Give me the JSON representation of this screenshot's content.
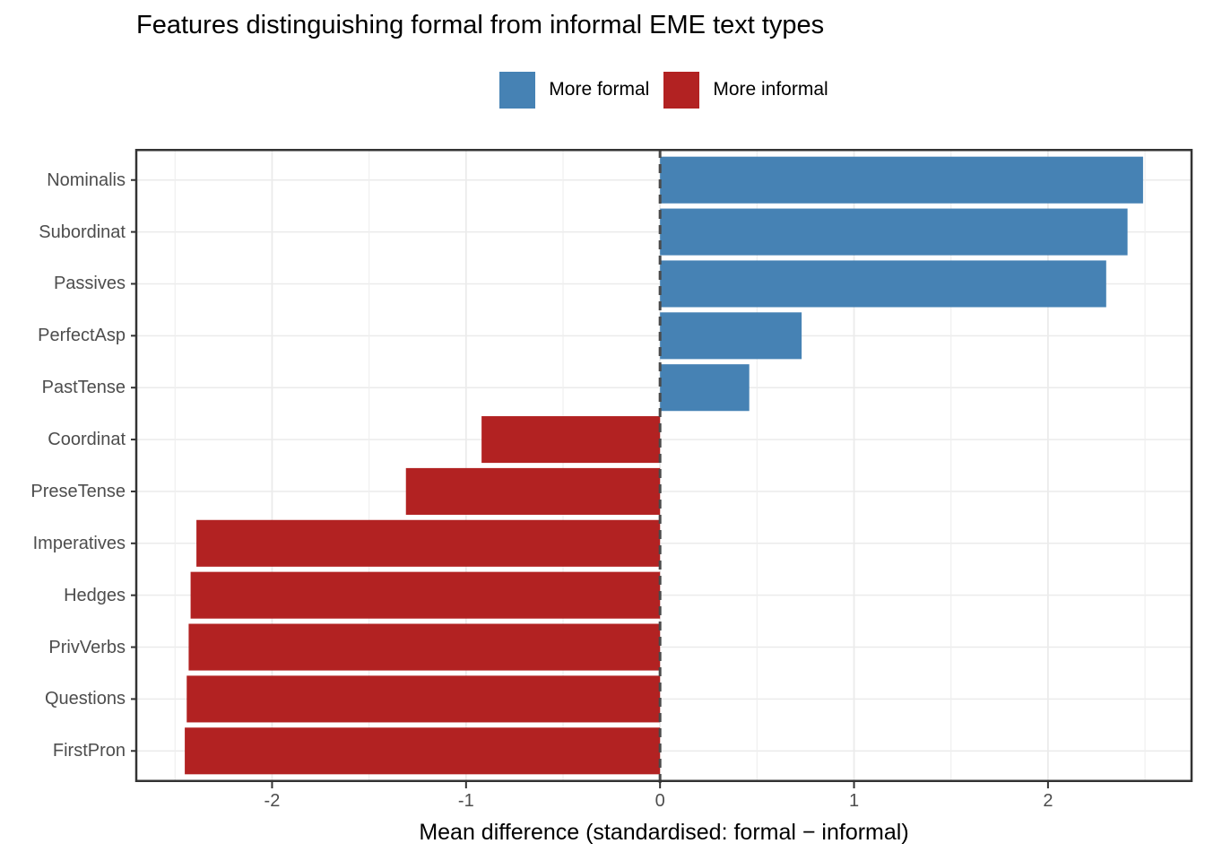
{
  "title": "Features distinguishing formal from informal EME text types",
  "legend": {
    "items": [
      {
        "label": "More formal",
        "color": "#4682B4"
      },
      {
        "label": "More informal",
        "color": "#B22222"
      }
    ],
    "position": "top-center"
  },
  "chart_data": {
    "type": "bar",
    "orientation": "horizontal",
    "title": "Features distinguishing formal from informal EME text types",
    "xlabel": "Mean difference (standardised: formal − informal)",
    "ylabel": "",
    "categories": [
      "Nominalis",
      "Subordinat",
      "Passives",
      "PerfectAsp",
      "PastTense",
      "Coordinat",
      "PreseTense",
      "Imperatives",
      "Hedges",
      "PrivVerbs",
      "Questions",
      "FirstPron"
    ],
    "values": [
      2.49,
      2.41,
      2.3,
      0.73,
      0.46,
      -0.92,
      -1.31,
      -2.39,
      -2.42,
      -2.43,
      -2.44,
      -2.45
    ],
    "series": [
      {
        "name": "More formal",
        "color": "#4682B4",
        "rule": "value > 0"
      },
      {
        "name": "More informal",
        "color": "#B22222",
        "rule": "value < 0"
      }
    ],
    "xlim": [
      -2.7,
      2.74
    ],
    "x_major_ticks": [
      -2,
      -1,
      0,
      1,
      2
    ],
    "x_tick_labels": [
      "-2",
      "-1",
      "0",
      "1",
      "2"
    ],
    "x_minor_ticks": [
      -2.5,
      -1.5,
      -0.5,
      0.5,
      1.5,
      2.5
    ],
    "grid": {
      "on": true,
      "major_color": "#EBEBEB",
      "minor_color": "#EFEFEF",
      "horizontal_at_category_centers": true
    },
    "zero_line": {
      "style": "dashed",
      "color": "#4a4a4a"
    },
    "panel_border_color": "#333333",
    "tick_color": "#333333",
    "tick_text_color": "#4d4d4d",
    "bar_fill_positive": "#4682B4",
    "bar_fill_negative": "#B22222",
    "legend_position": "top"
  }
}
